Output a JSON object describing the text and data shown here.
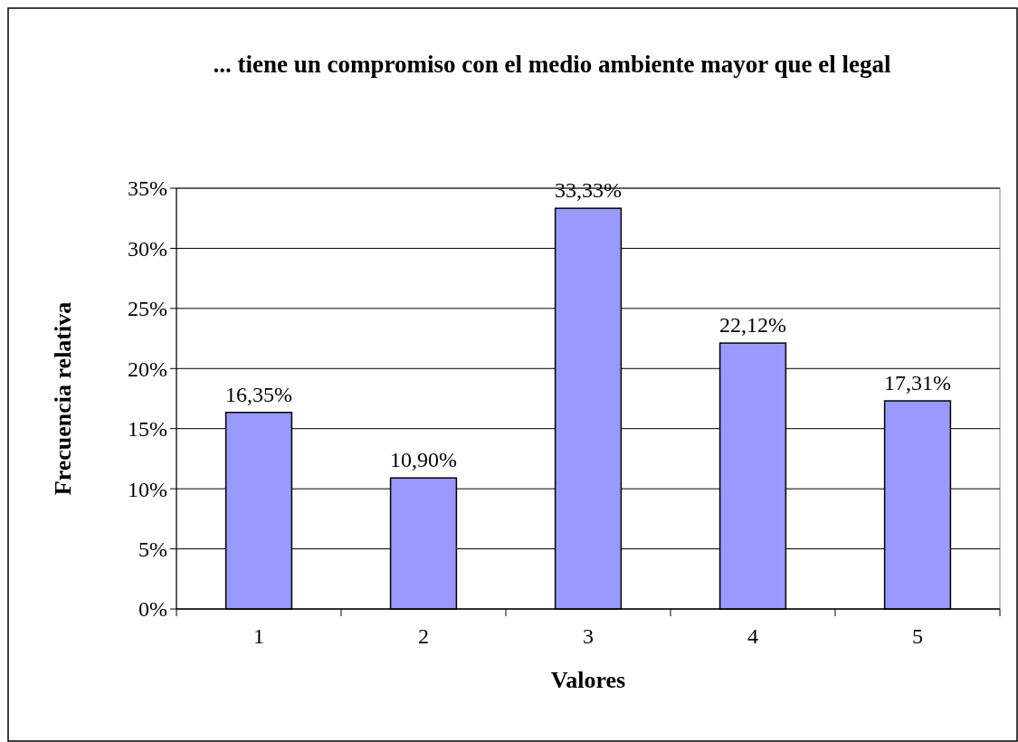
{
  "chart_data": {
    "type": "bar",
    "title": "... tiene un compromiso con el medio ambiente mayor que el legal",
    "xlabel": "Valores",
    "ylabel": "Frecuencia relativa",
    "categories": [
      "1",
      "2",
      "3",
      "4",
      "5"
    ],
    "values": [
      16.35,
      10.9,
      33.33,
      22.12,
      17.31
    ],
    "color": "#9999ff",
    "value_labels": [
      "16,35%",
      "10,90%",
      "33,33%",
      "22,12%",
      "17,31%"
    ],
    "ylim": [
      0,
      35
    ],
    "yticks": [
      {
        "value": 0,
        "label": "0%"
      },
      {
        "value": 5,
        "label": "5%"
      },
      {
        "value": 10,
        "label": "10%"
      },
      {
        "value": 15,
        "label": "15%"
      },
      {
        "value": 20,
        "label": "20%"
      },
      {
        "value": 25,
        "label": "25%"
      },
      {
        "value": 30,
        "label": "30%"
      },
      {
        "value": 35,
        "label": "35%"
      }
    ],
    "grid": "y"
  }
}
